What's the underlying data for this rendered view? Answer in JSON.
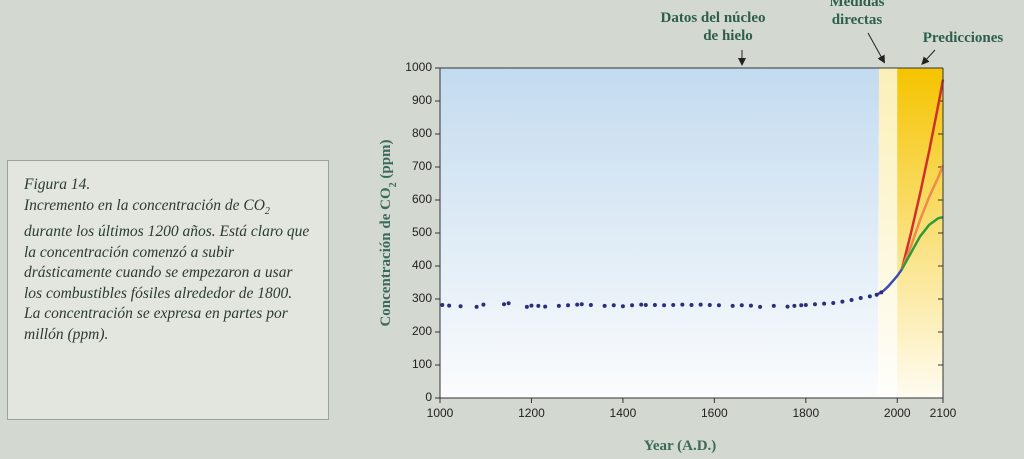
{
  "caption": {
    "figure": "Figura 14.",
    "text_before": "Incremento en la concentración de CO",
    "subscript": "2",
    "text_after": " durante los últimos 1200 años. Está claro que la concentración comenzó a subir drásticamente cuando se empezaron a usar los combustibles fósiles alrededor de 1800. La concentración se expresa en partes por millón (ppm)."
  },
  "chart_data": {
    "type": "scatter-line",
    "x_label": "Year (A.D.)",
    "y_label": {
      "text": "Concentración de CO",
      "subscript": "2",
      "suffix": " (ppm)"
    },
    "annotations": {
      "ice_core": [
        "Datos del núcleo",
        "de hielo"
      ],
      "direct": [
        "Medidas",
        "directas"
      ],
      "predictions": "Predicciones"
    },
    "xlim": [
      1000,
      2100
    ],
    "xticks": [
      1000,
      1200,
      1400,
      1600,
      1800,
      2000,
      2100
    ],
    "ylim": [
      0,
      1000
    ],
    "yticks": [
      0,
      100,
      200,
      300,
      400,
      500,
      600,
      700,
      800,
      900,
      1000
    ],
    "regions": [
      {
        "start": 1960,
        "end": 2000,
        "color": "#fbf0b8"
      },
      {
        "start": 2000,
        "end": 2100,
        "color": "#f5c400"
      }
    ],
    "scatter": {
      "color": "#2b2e7a",
      "x": [
        1005,
        1020,
        1045,
        1080,
        1095,
        1140,
        1150,
        1190,
        1200,
        1215,
        1230,
        1260,
        1280,
        1300,
        1310,
        1330,
        1360,
        1380,
        1400,
        1420,
        1440,
        1450,
        1470,
        1490,
        1510,
        1530,
        1550,
        1570,
        1590,
        1610,
        1640,
        1660,
        1680,
        1700,
        1730,
        1760,
        1775,
        1790,
        1800,
        1820,
        1840,
        1860,
        1880,
        1900,
        1920,
        1940,
        1955,
        1965
      ],
      "y": [
        282,
        280,
        278,
        276,
        283,
        284,
        287,
        276,
        280,
        279,
        277,
        279,
        281,
        283,
        284,
        282,
        279,
        281,
        278,
        281,
        283,
        282,
        282,
        281,
        282,
        283,
        282,
        283,
        282,
        281,
        279,
        281,
        280,
        276,
        279,
        277,
        279,
        281,
        282,
        284,
        286,
        288,
        292,
        297,
        303,
        308,
        313,
        320
      ]
    },
    "lines": [
      {
        "color": "#3a4fb0",
        "x": [
          1958,
          1970,
          1980,
          1990,
          2000,
          2010
        ],
        "values": [
          315,
          325,
          338,
          354,
          370,
          390
        ]
      },
      {
        "color": "#d0302a",
        "x": [
          2010,
          2030,
          2050,
          2070,
          2090,
          2100
        ],
        "values": [
          390,
          500,
          620,
          750,
          890,
          965
        ]
      },
      {
        "color": "#f08a4b",
        "x": [
          2010,
          2030,
          2050,
          2070,
          2090,
          2100
        ],
        "values": [
          390,
          460,
          540,
          610,
          670,
          705
        ]
      },
      {
        "color": "#2e9a3c",
        "x": [
          2010,
          2030,
          2050,
          2070,
          2090,
          2100
        ],
        "values": [
          390,
          440,
          490,
          525,
          545,
          548
        ]
      }
    ]
  }
}
